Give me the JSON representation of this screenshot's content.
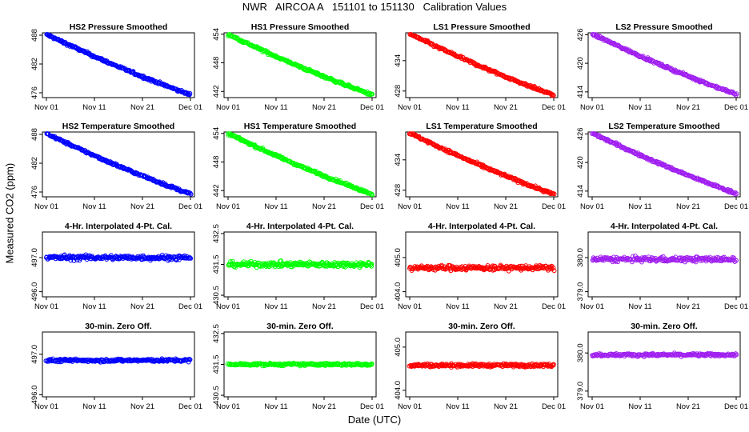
{
  "title": "NWR   AIRCOA A   151101 to 151130   Calibration Values",
  "ylabel": "Measured CO2 (ppm)",
  "xlabel": "Date (UTC)",
  "x_ticks": [
    "Nov 01",
    "Nov 11",
    "Nov 21",
    "Dec 01"
  ],
  "chart_data": [
    {
      "type": "scatter",
      "title": "HS2 Pressure Smoothed",
      "color": "#0000ff",
      "ylim": [
        475,
        488.5
      ],
      "yticks": [
        "476",
        "482",
        "488"
      ],
      "trend": {
        "start": 488.2,
        "end": 475.6
      },
      "noise": 0.25
    },
    {
      "type": "scatter",
      "title": "HS1 Pressure Smoothed",
      "color": "#00ff00",
      "ylim": [
        440.7,
        454.3
      ],
      "yticks": [
        "442",
        "448",
        "454"
      ],
      "trend": {
        "start": 454.0,
        "end": 441.3
      },
      "noise": 0.25
    },
    {
      "type": "scatter",
      "title": "LS1 Pressure Smoothed",
      "color": "#ff0000",
      "ylim": [
        426.7,
        439.5
      ],
      "yticks": [
        "428",
        "434"
      ],
      "trend": {
        "start": 439.3,
        "end": 427.2
      },
      "noise": 0.25
    },
    {
      "type": "scatter",
      "title": "LS2 Pressure Smoothed",
      "color": "#a020f0",
      "ylim": [
        412.8,
        426.4
      ],
      "yticks": [
        "414",
        "420",
        "426"
      ],
      "trend": {
        "start": 426.2,
        "end": 413.5
      },
      "noise": 0.25
    },
    {
      "type": "scatter",
      "title": "HS2 Temperature Smoothed",
      "color": "#0000ff",
      "ylim": [
        475,
        488.5
      ],
      "yticks": [
        "476",
        "482",
        "488"
      ],
      "trend": {
        "start": 488.2,
        "end": 475.6
      },
      "noise": 0.25
    },
    {
      "type": "scatter",
      "title": "HS1 Temperature Smoothed",
      "color": "#00ff00",
      "ylim": [
        440.7,
        454.3
      ],
      "yticks": [
        "442",
        "448",
        "454"
      ],
      "trend": {
        "start": 454.0,
        "end": 441.3
      },
      "noise": 0.25
    },
    {
      "type": "scatter",
      "title": "LS1 Temperature Smoothed",
      "color": "#ff0000",
      "ylim": [
        426.7,
        439.5
      ],
      "yticks": [
        "428",
        "434"
      ],
      "trend": {
        "start": 439.3,
        "end": 427.2
      },
      "noise": 0.25
    },
    {
      "type": "scatter",
      "title": "LS2 Temperature Smoothed",
      "color": "#a020f0",
      "ylim": [
        412.8,
        426.4
      ],
      "yticks": [
        "414",
        "420",
        "426"
      ],
      "trend": {
        "start": 426.2,
        "end": 413.5
      },
      "noise": 0.25
    },
    {
      "type": "scatter",
      "title": "4-Hr. Interpolated 4-Pt. Cal.",
      "color": "#0000ff",
      "ylim": [
        495.85,
        497.75
      ],
      "yticks": [
        "496.0",
        "497.0"
      ],
      "trend": {
        "start": 497.0,
        "end": 497.0
      },
      "noise": 0.07
    },
    {
      "type": "scatter",
      "title": "4-Hr. Interpolated 4-Pt. Cal.",
      "color": "#00ff00",
      "ylim": [
        430.45,
        432.55
      ],
      "yticks": [
        "430.5",
        "431.5",
        "432.5"
      ],
      "trend": {
        "start": 431.5,
        "end": 431.5
      },
      "noise": 0.08
    },
    {
      "type": "scatter",
      "title": "4-Hr. Interpolated 4-Pt. Cal.",
      "color": "#ff0000",
      "ylim": [
        403.85,
        405.75
      ],
      "yticks": [
        "404.0",
        "405.0"
      ],
      "trend": {
        "start": 404.7,
        "end": 404.7
      },
      "noise": 0.07
    },
    {
      "type": "scatter",
      "title": "4-Hr. Interpolated 4-Pt. Cal.",
      "color": "#a020f0",
      "ylim": [
        378.85,
        380.75
      ],
      "yticks": [
        "379.0",
        "380.0"
      ],
      "trend": {
        "start": 379.95,
        "end": 379.95
      },
      "noise": 0.07
    },
    {
      "type": "scatter",
      "title": "30-min. Zero Off.",
      "color": "#0000ff",
      "ylim": [
        495.95,
        497.55
      ],
      "yticks": [
        "496.0",
        "497.0"
      ],
      "trend": {
        "start": 496.85,
        "end": 496.85
      },
      "noise": 0.035
    },
    {
      "type": "scatter",
      "title": "30-min. Zero Off.",
      "color": "#00ff00",
      "ylim": [
        430.45,
        432.55
      ],
      "yticks": [
        "430.5",
        "431.5",
        "432.5"
      ],
      "trend": {
        "start": 431.5,
        "end": 431.5
      },
      "noise": 0.04
    },
    {
      "type": "scatter",
      "title": "30-min. Zero Off.",
      "color": "#ff0000",
      "ylim": [
        403.85,
        405.35
      ],
      "yticks": [
        "404.0",
        "405.0"
      ],
      "trend": {
        "start": 404.58,
        "end": 404.58
      },
      "noise": 0.035
    },
    {
      "type": "scatter",
      "title": "30-min. Zero Off.",
      "color": "#a020f0",
      "ylim": [
        378.85,
        380.55
      ],
      "yticks": [
        "379.0",
        "380.0"
      ],
      "trend": {
        "start": 379.95,
        "end": 379.95
      },
      "noise": 0.035
    }
  ]
}
